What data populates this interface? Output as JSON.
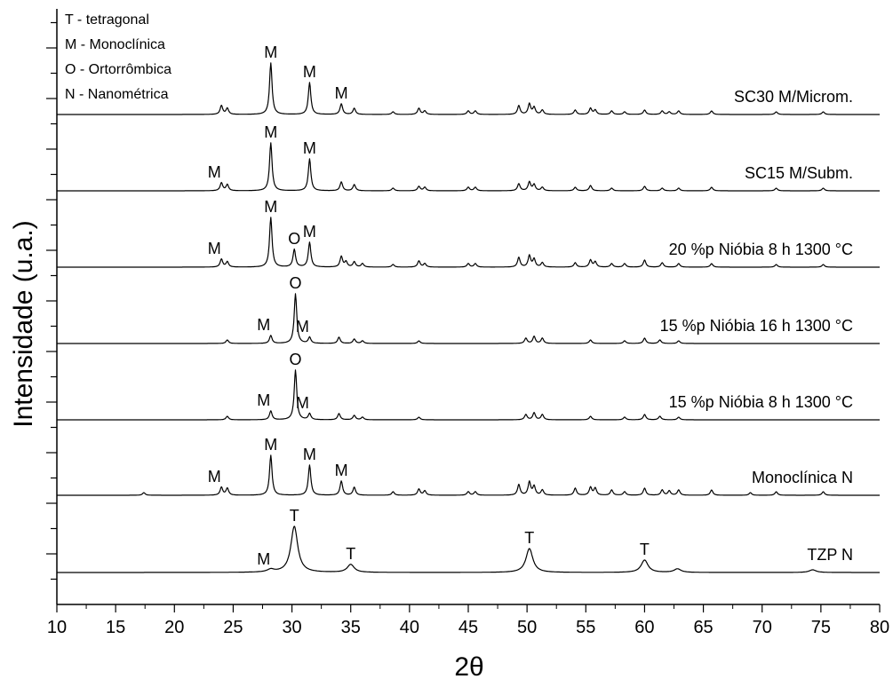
{
  "chart_data": {
    "type": "line",
    "title": "",
    "xlabel": "2θ",
    "ylabel": "Intensidade (u.a.)",
    "xlim": [
      10,
      80
    ],
    "x_ticks": [
      "10",
      "15",
      "20",
      "25",
      "30",
      "35",
      "40",
      "45",
      "50",
      "55",
      "60",
      "65",
      "70",
      "75",
      "80"
    ],
    "y_tick_labels": "none",
    "grid": false,
    "legend_position": "top-left",
    "legend": [
      "T - tetragonal",
      "M - Monoclínica",
      "O - Ortorrômbica",
      "N - Nanométrica"
    ],
    "series": [
      {
        "name": "SC30 M/Microm.",
        "peaks": [
          {
            "x": 24.0,
            "h": 10,
            "label": ""
          },
          {
            "x": 24.5,
            "h": 7,
            "label": ""
          },
          {
            "x": 28.2,
            "h": 58,
            "label": "M"
          },
          {
            "x": 31.5,
            "h": 36,
            "label": "M"
          },
          {
            "x": 34.2,
            "h": 12,
            "label": "M"
          },
          {
            "x": 35.3,
            "h": 7,
            "label": ""
          },
          {
            "x": 38.6,
            "h": 3,
            "label": ""
          },
          {
            "x": 40.8,
            "h": 7,
            "label": ""
          },
          {
            "x": 41.3,
            "h": 4,
            "label": ""
          },
          {
            "x": 45.0,
            "h": 4,
            "label": ""
          },
          {
            "x": 45.6,
            "h": 4,
            "label": ""
          },
          {
            "x": 49.3,
            "h": 10,
            "label": ""
          },
          {
            "x": 50.2,
            "h": 12,
            "label": ""
          },
          {
            "x": 50.6,
            "h": 8,
            "label": ""
          },
          {
            "x": 51.3,
            "h": 5,
            "label": ""
          },
          {
            "x": 54.1,
            "h": 5,
            "label": ""
          },
          {
            "x": 55.4,
            "h": 7,
            "label": ""
          },
          {
            "x": 55.8,
            "h": 5,
            "label": ""
          },
          {
            "x": 57.2,
            "h": 4,
            "label": ""
          },
          {
            "x": 58.3,
            "h": 3,
            "label": ""
          },
          {
            "x": 60.0,
            "h": 5,
            "label": ""
          },
          {
            "x": 61.5,
            "h": 4,
            "label": ""
          },
          {
            "x": 62.1,
            "h": 3,
            "label": ""
          },
          {
            "x": 62.9,
            "h": 4,
            "label": ""
          },
          {
            "x": 65.7,
            "h": 4,
            "label": ""
          },
          {
            "x": 71.2,
            "h": 3,
            "label": ""
          },
          {
            "x": 75.2,
            "h": 3,
            "label": ""
          }
        ]
      },
      {
        "name": "SC15 M/Subm.",
        "peaks": [
          {
            "x": 24.0,
            "h": 9,
            "label": "M"
          },
          {
            "x": 24.5,
            "h": 7,
            "label": ""
          },
          {
            "x": 28.2,
            "h": 54,
            "label": "M"
          },
          {
            "x": 31.5,
            "h": 36,
            "label": "M"
          },
          {
            "x": 34.2,
            "h": 10,
            "label": ""
          },
          {
            "x": 35.3,
            "h": 7,
            "label": ""
          },
          {
            "x": 38.6,
            "h": 3,
            "label": ""
          },
          {
            "x": 40.8,
            "h": 5,
            "label": ""
          },
          {
            "x": 41.3,
            "h": 4,
            "label": ""
          },
          {
            "x": 45.0,
            "h": 4,
            "label": ""
          },
          {
            "x": 45.6,
            "h": 4,
            "label": ""
          },
          {
            "x": 49.3,
            "h": 8,
            "label": ""
          },
          {
            "x": 50.2,
            "h": 10,
            "label": ""
          },
          {
            "x": 50.6,
            "h": 7,
            "label": ""
          },
          {
            "x": 51.3,
            "h": 4,
            "label": ""
          },
          {
            "x": 54.1,
            "h": 4,
            "label": ""
          },
          {
            "x": 55.4,
            "h": 6,
            "label": ""
          },
          {
            "x": 57.2,
            "h": 3,
            "label": ""
          },
          {
            "x": 60.0,
            "h": 5,
            "label": ""
          },
          {
            "x": 61.5,
            "h": 3,
            "label": ""
          },
          {
            "x": 62.9,
            "h": 3,
            "label": ""
          },
          {
            "x": 65.7,
            "h": 4,
            "label": ""
          },
          {
            "x": 71.2,
            "h": 3,
            "label": ""
          },
          {
            "x": 75.2,
            "h": 3,
            "label": ""
          }
        ]
      },
      {
        "name": "20 %p Nióbia 8 h 1300 °C",
        "peaks": [
          {
            "x": 24.0,
            "h": 9,
            "label": "M"
          },
          {
            "x": 24.5,
            "h": 6,
            "label": ""
          },
          {
            "x": 28.2,
            "h": 56,
            "label": "M"
          },
          {
            "x": 30.2,
            "h": 20,
            "label": "O"
          },
          {
            "x": 31.5,
            "h": 28,
            "label": "M"
          },
          {
            "x": 34.2,
            "h": 12,
            "label": ""
          },
          {
            "x": 34.6,
            "h": 6,
            "label": ""
          },
          {
            "x": 35.3,
            "h": 6,
            "label": ""
          },
          {
            "x": 36.0,
            "h": 4,
            "label": ""
          },
          {
            "x": 38.6,
            "h": 3,
            "label": ""
          },
          {
            "x": 40.8,
            "h": 7,
            "label": ""
          },
          {
            "x": 41.3,
            "h": 4,
            "label": ""
          },
          {
            "x": 45.0,
            "h": 4,
            "label": ""
          },
          {
            "x": 45.6,
            "h": 4,
            "label": ""
          },
          {
            "x": 49.3,
            "h": 11,
            "label": ""
          },
          {
            "x": 50.2,
            "h": 13,
            "label": ""
          },
          {
            "x": 50.6,
            "h": 9,
            "label": ""
          },
          {
            "x": 51.3,
            "h": 5,
            "label": ""
          },
          {
            "x": 54.1,
            "h": 5,
            "label": ""
          },
          {
            "x": 55.4,
            "h": 8,
            "label": ""
          },
          {
            "x": 55.8,
            "h": 6,
            "label": ""
          },
          {
            "x": 57.2,
            "h": 4,
            "label": ""
          },
          {
            "x": 58.3,
            "h": 4,
            "label": ""
          },
          {
            "x": 60.0,
            "h": 8,
            "label": ""
          },
          {
            "x": 61.5,
            "h": 5,
            "label": ""
          },
          {
            "x": 62.9,
            "h": 4,
            "label": ""
          },
          {
            "x": 65.7,
            "h": 4,
            "label": ""
          },
          {
            "x": 71.2,
            "h": 3,
            "label": ""
          },
          {
            "x": 75.2,
            "h": 3,
            "label": ""
          }
        ]
      },
      {
        "name": "15 %p Nióbia 16 h 1300 °C",
        "peaks": [
          {
            "x": 24.5,
            "h": 4,
            "label": ""
          },
          {
            "x": 28.2,
            "h": 9,
            "label": "M"
          },
          {
            "x": 30.3,
            "h": 56,
            "label": "O"
          },
          {
            "x": 31.5,
            "h": 7,
            "label": "M"
          },
          {
            "x": 34.0,
            "h": 7,
            "label": ""
          },
          {
            "x": 35.3,
            "h": 5,
            "label": ""
          },
          {
            "x": 36.0,
            "h": 3,
            "label": ""
          },
          {
            "x": 40.8,
            "h": 3,
            "label": ""
          },
          {
            "x": 49.9,
            "h": 6,
            "label": ""
          },
          {
            "x": 50.6,
            "h": 8,
            "label": ""
          },
          {
            "x": 51.3,
            "h": 6,
            "label": ""
          },
          {
            "x": 55.4,
            "h": 4,
            "label": ""
          },
          {
            "x": 58.3,
            "h": 3,
            "label": ""
          },
          {
            "x": 60.0,
            "h": 6,
            "label": ""
          },
          {
            "x": 61.3,
            "h": 4,
            "label": ""
          },
          {
            "x": 62.9,
            "h": 3,
            "label": ""
          }
        ]
      },
      {
        "name": "15 %p Nióbia 8 h 1300 °C",
        "peaks": [
          {
            "x": 24.5,
            "h": 4,
            "label": ""
          },
          {
            "x": 28.2,
            "h": 10,
            "label": "M"
          },
          {
            "x": 30.3,
            "h": 56,
            "label": "O"
          },
          {
            "x": 31.5,
            "h": 7,
            "label": "M"
          },
          {
            "x": 34.0,
            "h": 7,
            "label": ""
          },
          {
            "x": 35.3,
            "h": 5,
            "label": ""
          },
          {
            "x": 36.0,
            "h": 3,
            "label": ""
          },
          {
            "x": 40.8,
            "h": 3,
            "label": ""
          },
          {
            "x": 49.9,
            "h": 6,
            "label": ""
          },
          {
            "x": 50.6,
            "h": 8,
            "label": ""
          },
          {
            "x": 51.3,
            "h": 6,
            "label": ""
          },
          {
            "x": 55.4,
            "h": 4,
            "label": ""
          },
          {
            "x": 58.3,
            "h": 3,
            "label": ""
          },
          {
            "x": 60.0,
            "h": 6,
            "label": ""
          },
          {
            "x": 61.3,
            "h": 4,
            "label": ""
          },
          {
            "x": 62.9,
            "h": 3,
            "label": ""
          }
        ]
      },
      {
        "name": "Monoclínica N",
        "peaks": [
          {
            "x": 17.4,
            "h": 3,
            "label": ""
          },
          {
            "x": 24.0,
            "h": 9,
            "label": "M"
          },
          {
            "x": 24.5,
            "h": 8,
            "label": ""
          },
          {
            "x": 28.2,
            "h": 45,
            "label": "M"
          },
          {
            "x": 31.5,
            "h": 34,
            "label": "M"
          },
          {
            "x": 34.2,
            "h": 16,
            "label": "M"
          },
          {
            "x": 35.3,
            "h": 9,
            "label": ""
          },
          {
            "x": 38.6,
            "h": 4,
            "label": ""
          },
          {
            "x": 40.8,
            "h": 7,
            "label": ""
          },
          {
            "x": 41.3,
            "h": 5,
            "label": ""
          },
          {
            "x": 45.0,
            "h": 4,
            "label": ""
          },
          {
            "x": 45.6,
            "h": 4,
            "label": ""
          },
          {
            "x": 49.3,
            "h": 12,
            "label": ""
          },
          {
            "x": 50.2,
            "h": 15,
            "label": ""
          },
          {
            "x": 50.6,
            "h": 10,
            "label": ""
          },
          {
            "x": 51.3,
            "h": 6,
            "label": ""
          },
          {
            "x": 54.1,
            "h": 8,
            "label": ""
          },
          {
            "x": 55.4,
            "h": 9,
            "label": ""
          },
          {
            "x": 55.8,
            "h": 8,
            "label": ""
          },
          {
            "x": 57.2,
            "h": 6,
            "label": ""
          },
          {
            "x": 58.3,
            "h": 4,
            "label": ""
          },
          {
            "x": 60.0,
            "h": 8,
            "label": ""
          },
          {
            "x": 61.5,
            "h": 6,
            "label": ""
          },
          {
            "x": 62.1,
            "h": 5,
            "label": ""
          },
          {
            "x": 62.9,
            "h": 6,
            "label": ""
          },
          {
            "x": 65.7,
            "h": 6,
            "label": ""
          },
          {
            "x": 69.0,
            "h": 3,
            "label": ""
          },
          {
            "x": 71.2,
            "h": 4,
            "label": ""
          },
          {
            "x": 75.2,
            "h": 4,
            "label": ""
          }
        ]
      },
      {
        "name": "TZP N",
        "peaks": [
          {
            "x": 28.2,
            "h": 3,
            "label": "M"
          },
          {
            "x": 30.2,
            "h": 52,
            "label": "T"
          },
          {
            "x": 35.0,
            "h": 9,
            "label": "T"
          },
          {
            "x": 50.2,
            "h": 27,
            "label": "T"
          },
          {
            "x": 60.0,
            "h": 14,
            "label": "T"
          },
          {
            "x": 62.8,
            "h": 4,
            "label": ""
          },
          {
            "x": 74.3,
            "h": 3,
            "label": ""
          }
        ]
      }
    ]
  }
}
